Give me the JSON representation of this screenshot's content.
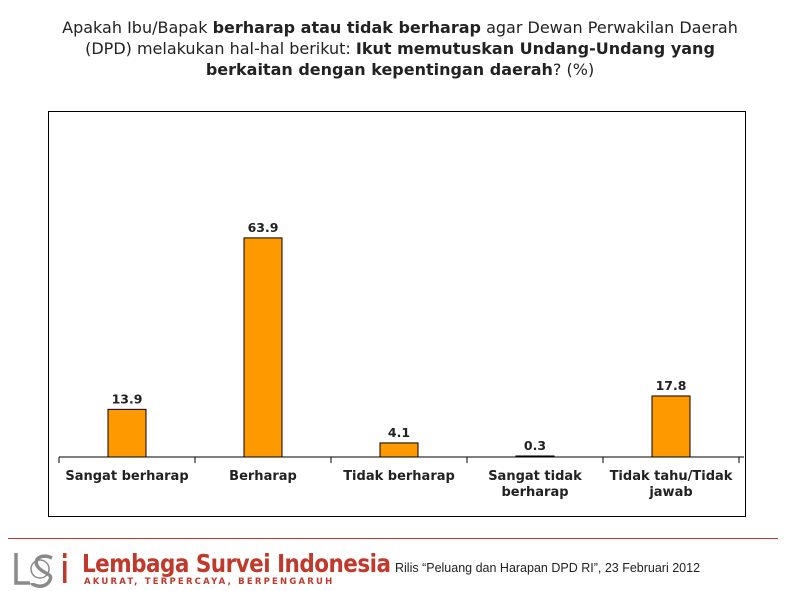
{
  "title": {
    "part1": "Apakah Ibu/Bapak ",
    "part2_bold": "berharap atau tidak berharap",
    "part3": " agar Dewan Perwakilan Daerah (DPD) melakukan hal-hal berikut: ",
    "part4_bold": "Ikut memutuskan Undang-Undang yang berkaitan dengan kepentingan daerah",
    "part5": "? (%)"
  },
  "chart_data": {
    "type": "bar",
    "categories": [
      [
        "Sangat berharap"
      ],
      [
        "Berharap"
      ],
      [
        "Tidak berharap"
      ],
      [
        "Sangat tidak",
        "berharap"
      ],
      [
        "Tidak tahu/Tidak",
        "jawab"
      ]
    ],
    "values": [
      13.9,
      63.9,
      4.1,
      0.3,
      17.8
    ],
    "value_labels": [
      "13.9",
      "63.9",
      "4.1",
      "0.3",
      "17.8"
    ],
    "ylim": [
      0,
      70
    ],
    "grid": false,
    "bar_color": "#ff9900",
    "bar_edge_color": "#000000"
  },
  "footer": {
    "logo_name": "Lembaga Survei Indonesia",
    "logo_tagline": "AKURAT, TERPERCAYA, BERPENGARUH",
    "release_text": "Rilis “Peluang dan Harapan DPD RI”, 23 Februari 2012",
    "brand_color": "#c0392b"
  }
}
